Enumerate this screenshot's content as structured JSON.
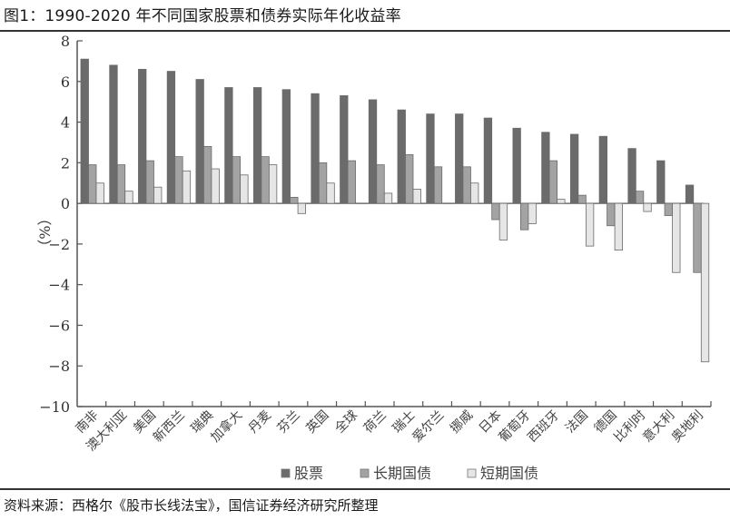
{
  "header": {
    "title": "图1：1990-2020 年不同国家股票和债券实际年化收益率"
  },
  "footer": {
    "source": "资料来源：西格尔《股市长线法宝》，国信证券经济研究所整理"
  },
  "colors": {
    "stock": "#6b6b6b",
    "long_bond": "#a3a3a3",
    "short_bond": "#e6e6e6",
    "axis": "#555555"
  },
  "chart_data": {
    "type": "bar",
    "title": "1990-2020 年不同国家股票和债券实际年化收益率",
    "xlabel": "",
    "ylabel": "（%）",
    "ylim": [
      -10,
      8
    ],
    "yticks": [
      8,
      6,
      4,
      2,
      0,
      -2,
      -4,
      -6,
      -8,
      -10
    ],
    "ytick_labels": [
      "8",
      "6",
      "4",
      "2",
      "0",
      "−2",
      "−4",
      "−6",
      "−8",
      "−10"
    ],
    "grid": false,
    "legend_position": "bottom",
    "categories": [
      "南非",
      "澳大利亚",
      "美国",
      "新西兰",
      "瑞典",
      "加拿大",
      "丹麦",
      "芬兰",
      "英国",
      "全球",
      "荷兰",
      "瑞士",
      "爱尔兰",
      "挪威",
      "日本",
      "葡萄牙",
      "西班牙",
      "法国",
      "德国",
      "比利时",
      "意大利",
      "奥地利"
    ],
    "series": [
      {
        "name": "股票",
        "values": [
          7.1,
          6.8,
          6.6,
          6.5,
          6.1,
          5.7,
          5.7,
          5.6,
          5.4,
          5.3,
          5.1,
          4.6,
          4.4,
          4.4,
          4.2,
          3.7,
          3.5,
          3.4,
          3.3,
          2.7,
          2.1,
          0.9
        ]
      },
      {
        "name": "长期国债",
        "values": [
          1.9,
          1.9,
          2.1,
          2.3,
          2.8,
          2.3,
          2.3,
          0.3,
          2.0,
          2.1,
          1.9,
          2.4,
          1.8,
          1.8,
          -0.8,
          -1.3,
          2.1,
          0.4,
          -1.1,
          0.6,
          -0.6,
          -3.4
        ]
      },
      {
        "name": "短期国债",
        "values": [
          1.0,
          0.6,
          0.8,
          1.6,
          1.7,
          1.4,
          1.9,
          -0.5,
          1.0,
          0.0,
          0.5,
          0.7,
          0.0,
          1.0,
          -1.8,
          -1.0,
          0.2,
          -2.1,
          -2.3,
          -0.4,
          -3.4,
          -7.8
        ]
      }
    ]
  }
}
